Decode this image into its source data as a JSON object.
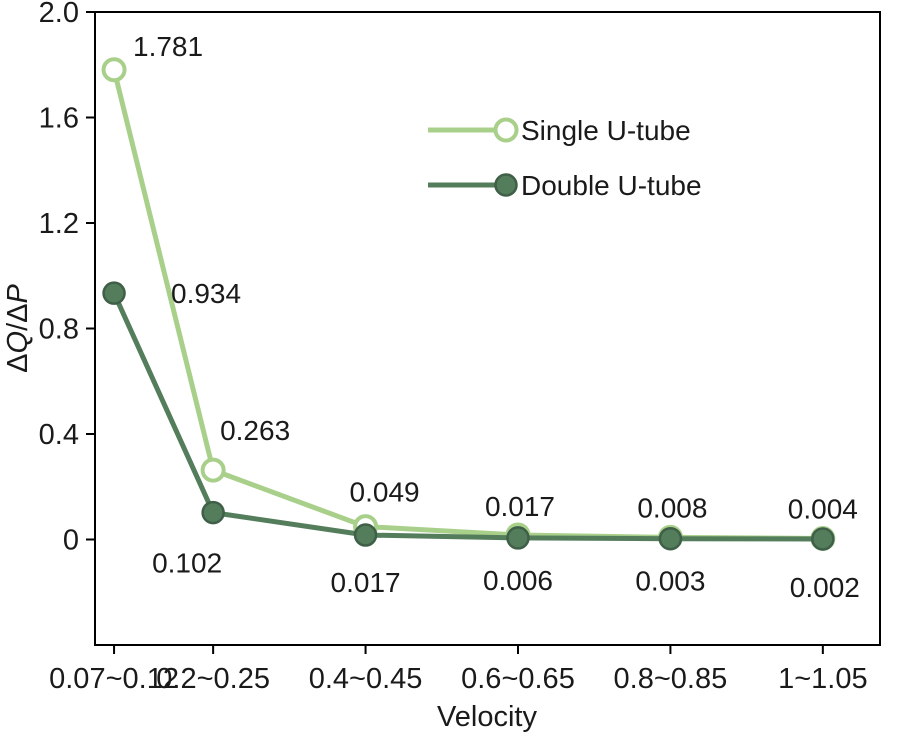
{
  "figure": {
    "background": "#ffffff",
    "text_color": "#1a1a1a",
    "axis_color": "#000000"
  },
  "chart_data": {
    "type": "line",
    "title": "",
    "xlabel": "Velocity",
    "ylabel": "ΔQ/ΔP",
    "categories": [
      "0.07~0.12",
      "0.2~0.25",
      "0.4~0.45",
      "0.6~0.65",
      "0.8~0.85",
      "1~1.05"
    ],
    "x": [
      0.095,
      0.225,
      0.425,
      0.625,
      0.825,
      1.025
    ],
    "xlim": [
      0.07,
      1.1
    ],
    "ylim": [
      -0.4,
      2.0
    ],
    "yticks": [
      0,
      0.4,
      0.8,
      1.2,
      1.6,
      2.0
    ],
    "ytick_labels": [
      "0",
      "0.4",
      "0.8",
      "1.2",
      "1.6",
      "2.0"
    ],
    "grid": false,
    "legend": {
      "position": "upper-center-inside",
      "entries": [
        "Single U-tube",
        "Double U-tube"
      ]
    },
    "series": [
      {
        "name": "Single U-tube",
        "values": [
          1.781,
          0.263,
          0.049,
          0.017,
          0.008,
          0.004
        ],
        "labels": [
          "1.781",
          "0.263",
          "0.049",
          "0.017",
          "0.008",
          "0.004"
        ],
        "color": "#a8d08a",
        "marker": "open-circle",
        "marker_fill": "#ffffff",
        "label_offsets": [
          [
            54,
            -14
          ],
          [
            42,
            -30
          ],
          [
            19,
            -25
          ],
          [
            2,
            -19
          ],
          [
            2,
            -20
          ],
          [
            0,
            -20
          ]
        ]
      },
      {
        "name": "Double U-tube",
        "values": [
          0.934,
          0.102,
          0.017,
          0.006,
          0.003,
          0.002
        ],
        "labels": [
          "0.934",
          "0.102",
          "0.017",
          "0.006",
          "0.003",
          "0.002"
        ],
        "color": "#547d5c",
        "marker": "filled-circle",
        "marker_fill": "#547d5c",
        "marker_edge": "#3f5f48",
        "label_offsets": [
          [
            92,
            10
          ],
          [
            -26,
            60
          ],
          [
            0,
            57
          ],
          [
            0,
            52
          ],
          [
            0,
            52
          ],
          [
            2,
            58
          ]
        ]
      }
    ]
  }
}
